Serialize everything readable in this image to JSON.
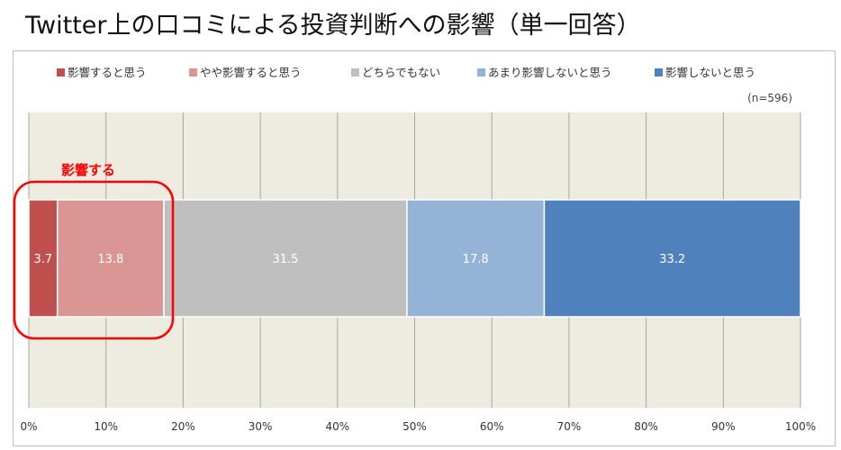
{
  "title": "Twitter上の口コミによる投資判断への影響（単一回答）",
  "chart_data": {
    "type": "bar",
    "orientation": "horizontal",
    "stacked": true,
    "categories": [
      ""
    ],
    "series": [
      {
        "name": "影響すると思う",
        "values": [
          3.7
        ],
        "color": "#c0504d"
      },
      {
        "name": "やや影響すると思う",
        "values": [
          13.8
        ],
        "color": "#d99694"
      },
      {
        "name": "どちらでもない",
        "values": [
          31.5
        ],
        "color": "#bfbfbf"
      },
      {
        "name": "あまり影響しないと思う",
        "values": [
          17.8
        ],
        "color": "#95b3d7"
      },
      {
        "name": "影響しないと思う",
        "values": [
          33.2
        ],
        "color": "#4f81bd"
      }
    ],
    "note": "(n=596)",
    "xlim": [
      0,
      100
    ],
    "xticks": [
      "0%",
      "10%",
      "20%",
      "30%",
      "40%",
      "50%",
      "60%",
      "70%",
      "80%",
      "90%",
      "100%"
    ],
    "legend_position": "top",
    "grid": true,
    "annotation": {
      "text": "影響する",
      "color": "#ff0000"
    }
  }
}
